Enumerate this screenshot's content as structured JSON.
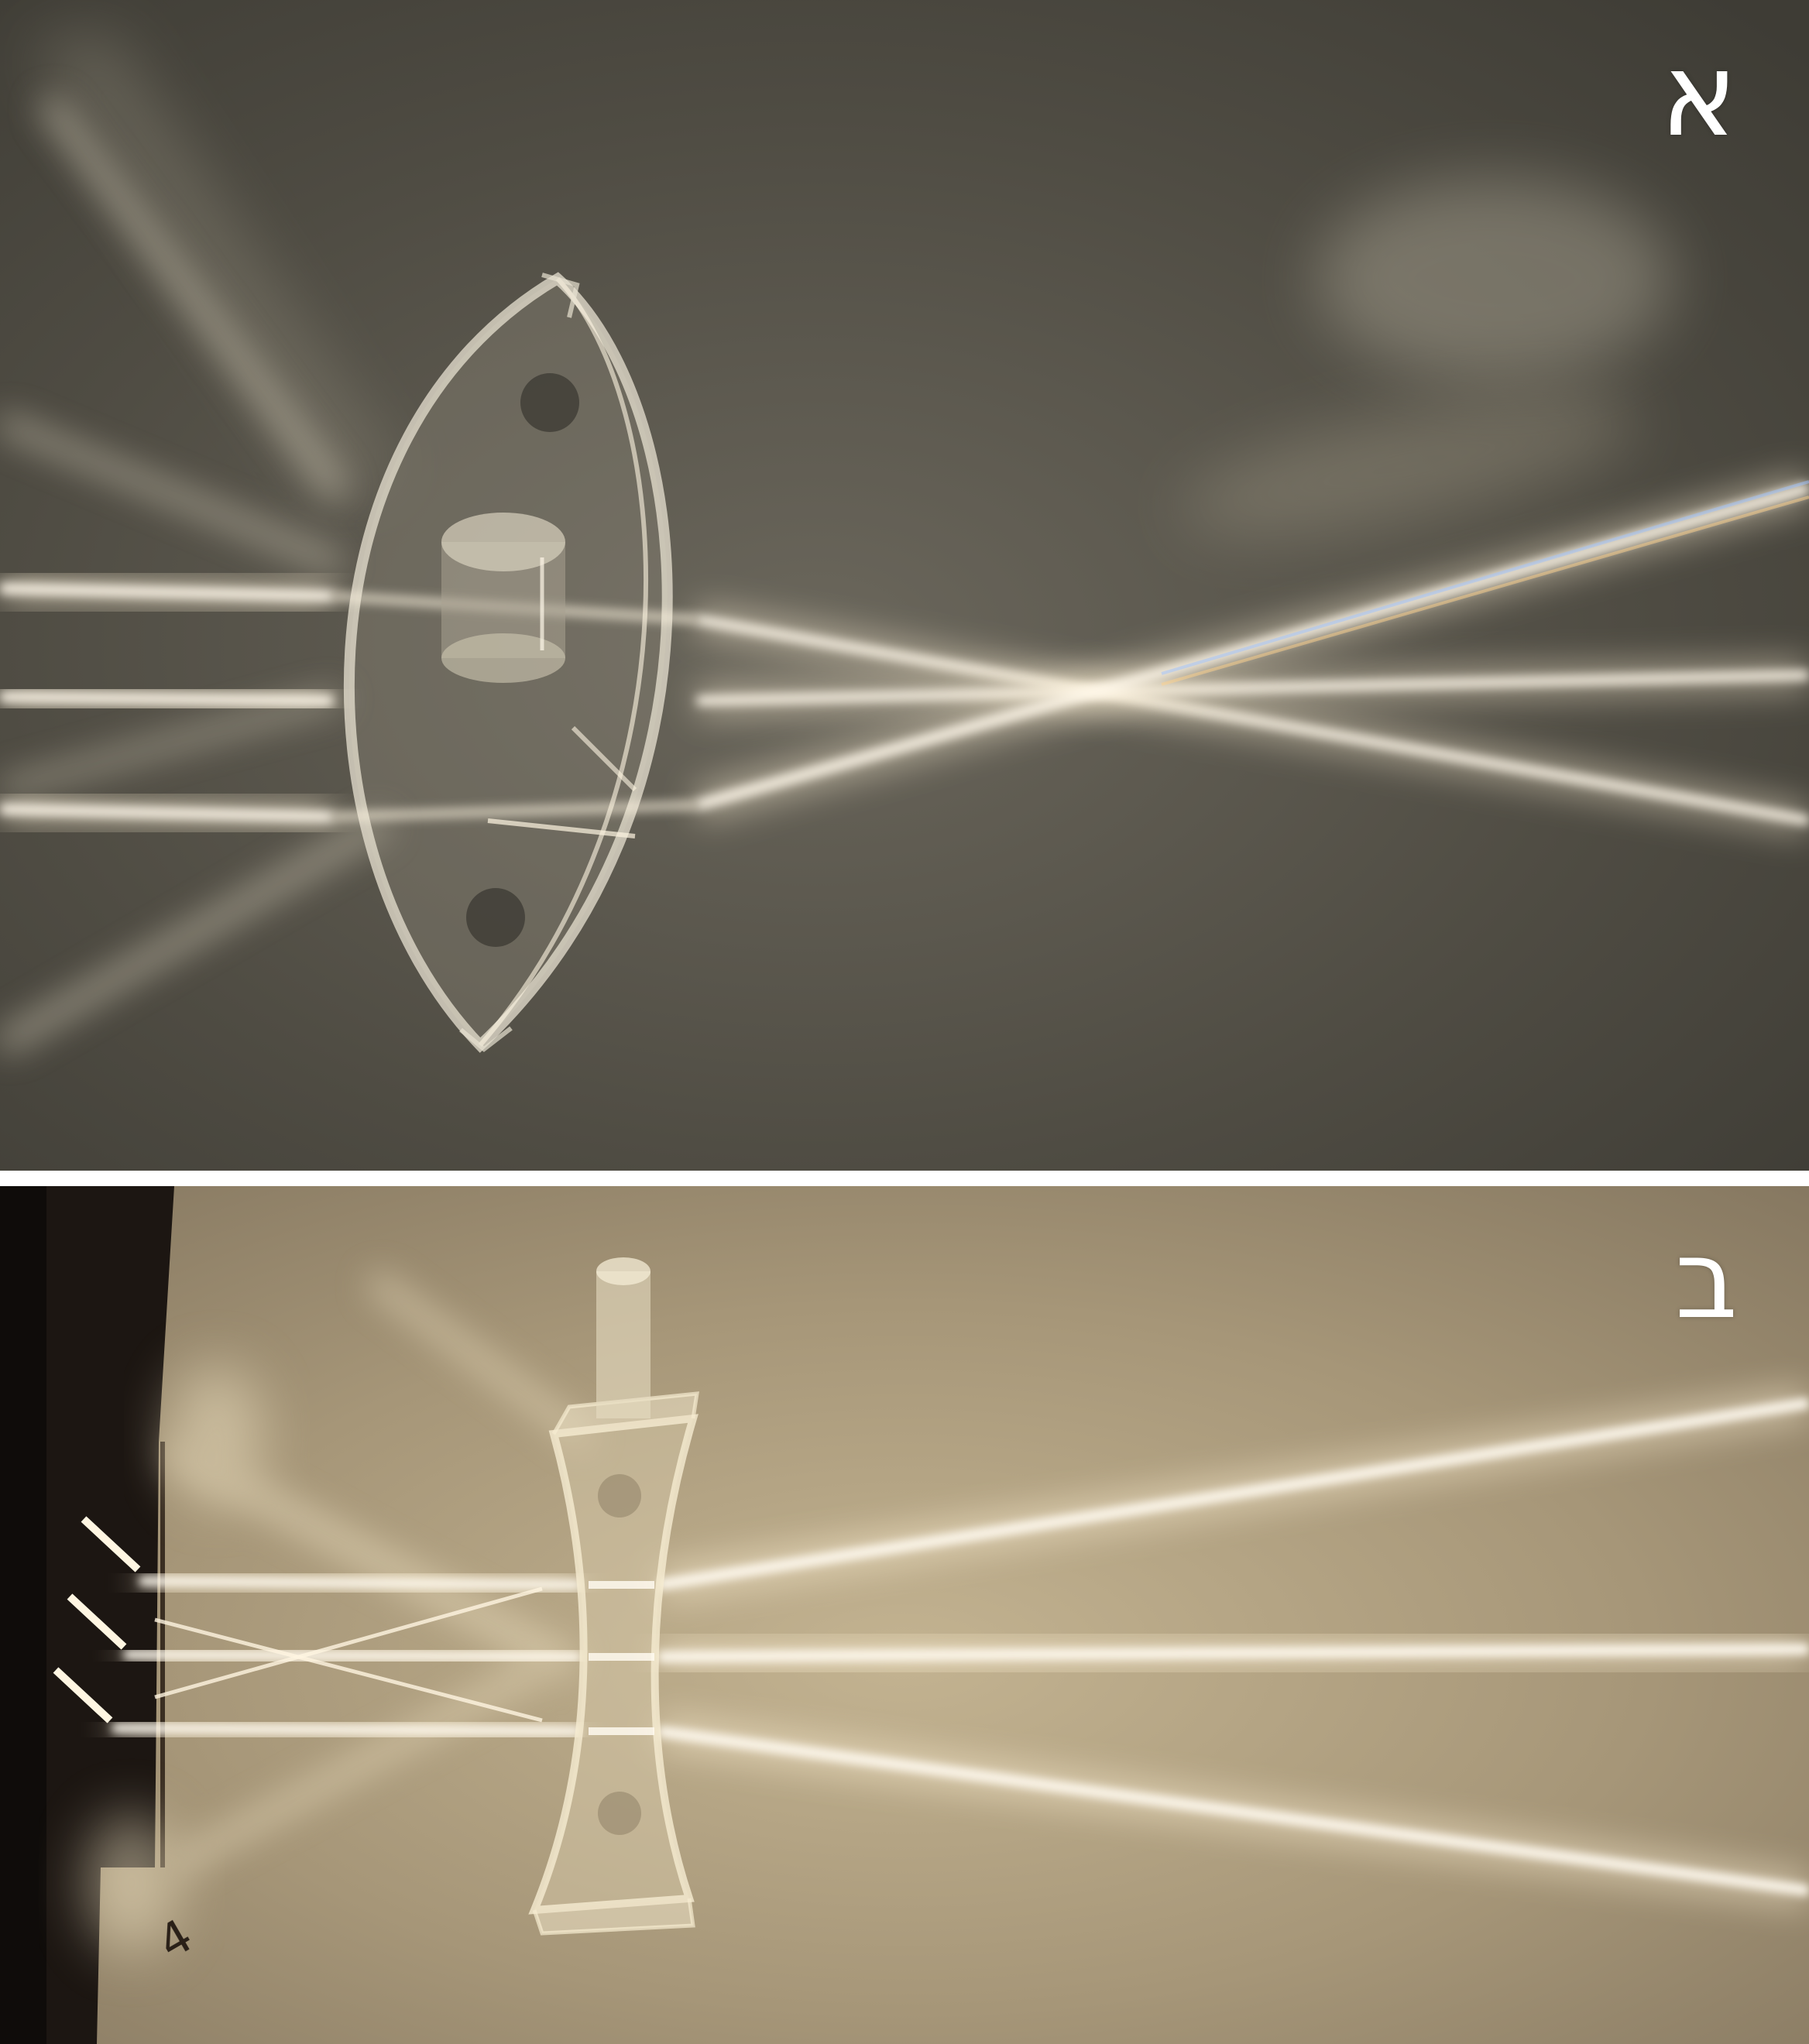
{
  "panels": [
    {
      "label": "א",
      "lens_type": "convex",
      "colors": {
        "background": "#4d4a41",
        "beam": "#fff4dc"
      }
    },
    {
      "label": "ב",
      "lens_type": "concave",
      "colors": {
        "background": "#a39377",
        "beam": "#fff1cf"
      }
    }
  ],
  "handwritten_mark": "4"
}
